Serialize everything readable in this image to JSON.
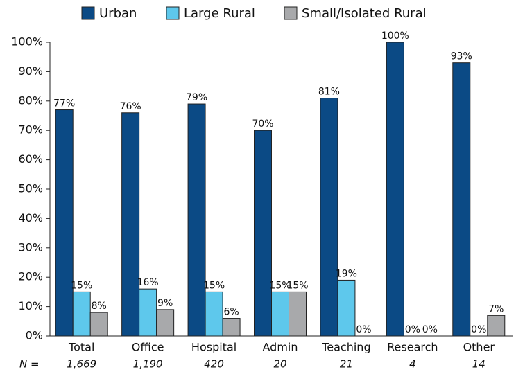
{
  "chart_data": {
    "type": "bar",
    "categories": [
      "Total",
      "Office",
      "Hospital",
      "Admin",
      "Teaching",
      "Research",
      "Other"
    ],
    "series": [
      {
        "name": "Urban",
        "color": "#0b4a85",
        "values": [
          77,
          76,
          79,
          70,
          81,
          100,
          93
        ],
        "value_labels": [
          "77%",
          "76%",
          "79%",
          "70%",
          "81%",
          "100%",
          "93%"
        ]
      },
      {
        "name": "Large Rural",
        "color": "#5ec8ec",
        "values": [
          15,
          16,
          15,
          15,
          19,
          0,
          0
        ],
        "value_labels": [
          "15%",
          "16%",
          "15%",
          "15%",
          "19%",
          "0%",
          "0%"
        ]
      },
      {
        "name": "Small/Isolated Rural",
        "color": "#a8a9ab",
        "values": [
          8,
          9,
          6,
          15,
          0,
          0,
          7
        ],
        "value_labels": [
          "8%",
          "9%",
          "6%",
          "15%",
          "0%",
          "0%",
          "7%"
        ]
      }
    ],
    "n_label": "N =",
    "n_values": [
      "1,669",
      "1,190",
      "420",
      "20",
      "21",
      "4",
      "14"
    ],
    "ylim": [
      0,
      100
    ],
    "yticks": [
      {
        "value": 0,
        "label": "0%"
      },
      {
        "value": 10,
        "label": "10%"
      },
      {
        "value": 20,
        "label": "20%"
      },
      {
        "value": 30,
        "label": "30%"
      },
      {
        "value": 40,
        "label": "40%"
      },
      {
        "value": 50,
        "label": "50%"
      },
      {
        "value": 60,
        "label": "60%"
      },
      {
        "value": 70,
        "label": "70%"
      },
      {
        "value": 80,
        "label": "80%"
      },
      {
        "value": 90,
        "label": "90%"
      },
      {
        "value": 100,
        "label": "100%"
      }
    ],
    "grid": false,
    "legend": "top"
  }
}
